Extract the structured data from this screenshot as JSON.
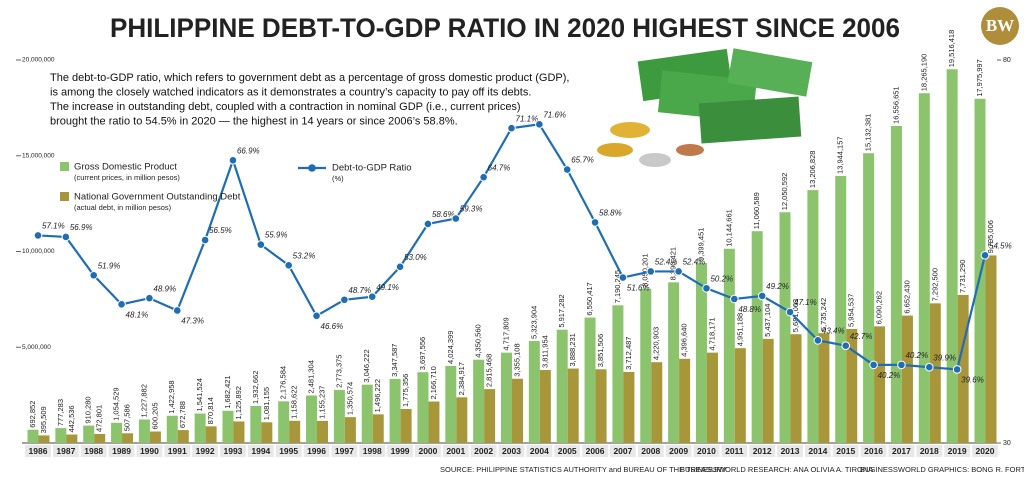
{
  "title": "PHILIPPINE DEBT-TO-GDP RATIO IN 2020 HIGHEST SINCE 2006",
  "logo": "BW",
  "description": [
    "The debt-to-GDP ratio, which refers to government debt as a percentage of gross domestic product (GDP),",
    "is among the closely watched indicators as it demonstrates a country’s capacity to pay off its debts.",
    "The increase in outstanding debt, coupled with a contraction in nominal GDP (i.e., current prices)",
    "brought the ratio to 54.5% in 2020 — the highest in 14 years or since 2006’s 58.8%."
  ],
  "footer": [
    "SOURCE: PHILIPPINE STATISTICS AUTHORITY and BUREAU OF THE TREASURY",
    "BUSINESSWORLD RESEARCH: ANA OLIVIA A. TIRONA",
    "BUSINESSWORLD GRAPHICS: BONG R. FORTIN"
  ],
  "chart_data": {
    "type": "bar",
    "title": "PHILIPPINE DEBT-TO-GDP RATIO IN 2020 HIGHEST SINCE 2006",
    "categories": [
      "1986",
      "1987",
      "1988",
      "1989",
      "1990",
      "1991",
      "1992",
      "1993",
      "1994",
      "1995",
      "1996",
      "1997",
      "1998",
      "1999",
      "2000",
      "2001",
      "2002",
      "2003",
      "2004",
      "2005",
      "2006",
      "2007",
      "2008",
      "2009",
      "2010",
      "2011",
      "2012",
      "2013",
      "2014",
      "2015",
      "2016",
      "2017",
      "2018",
      "2019",
      "2020"
    ],
    "ylim": [
      0,
      20000000
    ],
    "yticks": [
      {
        "value": 5000000,
        "label": "5,000,000"
      },
      {
        "value": 10000000,
        "label": "10,000,000"
      },
      {
        "value": 15000000,
        "label": "15,000,000"
      },
      {
        "value": 20000000,
        "label": "20,000,000"
      }
    ],
    "y2lim": [
      30,
      80
    ],
    "y2ticks": [
      30,
      80
    ],
    "series": [
      {
        "name": "Gross Domestic Product",
        "note": "(current prices, in million pesos)",
        "color": "#8cc46e",
        "values": [
          692852,
          777283,
          910280,
          1054529,
          1227882,
          1422958,
          1541524,
          1682421,
          1932662,
          2176584,
          2481304,
          2773375,
          3046222,
          3347587,
          3697556,
          4024399,
          4350560,
          4717809,
          5323904,
          5917282,
          6550417,
          7190245,
          8050201,
          8390421,
          9399451,
          10144661,
          11060589,
          12050592,
          13206828,
          13944157,
          15132381,
          16556651,
          18265190,
          19516418,
          17975997
        ],
        "value_labels": [
          "692,852",
          "777,283",
          "910,280",
          "1,054,529",
          "1,227,882",
          "1,422,958",
          "1,541,524",
          "1,682,421",
          "1,932,662",
          "2,176,584",
          "2,481,304",
          "2,773,375",
          "3,046,222",
          "3,347,587",
          "3,697,556",
          "4,024,399",
          "4,350,560",
          "4,717,809",
          "5,323,904",
          "5,917,282",
          "6,550,417",
          "7,190,245",
          "8,050,201",
          "8,390,421",
          "9,399,451",
          "10,144,661",
          "11,060,589",
          "12,050,592",
          "13,206,828",
          "13,944,157",
          "15,132,381",
          "16,556,651",
          "18,265,190",
          "19,516,418",
          "17,975,997"
        ]
      },
      {
        "name": "National Government Outstanding Debt",
        "note": "(actual debt, in million pesos)",
        "color": "#a8963a",
        "values": [
          395509,
          442536,
          472801,
          507586,
          600205,
          672788,
          870814,
          1125892,
          1081155,
          1158622,
          1155237,
          1350574,
          1496222,
          1775356,
          2166710,
          2384917,
          2815468,
          3355108,
          3811954,
          3888231,
          3851506,
          3712487,
          4220903,
          4396640,
          4718171,
          4951188,
          5437104,
          5681063,
          5735242,
          5954537,
          6090262,
          6652430,
          7292500,
          7731290,
          9795006
        ],
        "value_labels": [
          "395,509",
          "442,536",
          "472,801",
          "507,586",
          "600,205",
          "672,788",
          "870,814",
          "1,125,892",
          "1,081,155",
          "1,158,622",
          "1,155,237",
          "1,350,574",
          "1,496,222",
          "1,775,356",
          "2,166,710",
          "2,384,917",
          "2,815,468",
          "3,355,108",
          "3,811,954",
          "3,888,231",
          "3,851,506",
          "3,712,487",
          "4,220,903",
          "4,396,640",
          "4,718,171",
          "4,951,188",
          "5,437,104",
          "5,681,063",
          "5,735,242",
          "5,954,537",
          "6,090,262",
          "6,652,430",
          "7,292,500",
          "7,731,290",
          "9,795,006"
        ]
      },
      {
        "name": "Debt-to-GDP Ratio",
        "note": "(%)",
        "color": "#1f6db5",
        "type": "line",
        "axis": "y2",
        "values": [
          57.1,
          56.9,
          51.9,
          48.1,
          48.9,
          47.3,
          56.5,
          66.9,
          55.9,
          53.2,
          46.6,
          48.7,
          49.1,
          53.0,
          58.6,
          59.3,
          64.7,
          71.1,
          71.6,
          65.7,
          58.8,
          51.6,
          52.4,
          52.4,
          50.2,
          48.8,
          49.2,
          47.1,
          43.4,
          42.7,
          40.2,
          40.2,
          39.9,
          39.6,
          54.5
        ],
        "value_labels": [
          "57.1%",
          "56.9%",
          "51.9%",
          "48.1%",
          "48.9%",
          "47.3%",
          "56.5%",
          "66.9%",
          "55.9%",
          "53.2%",
          "46.6%",
          "48.7%",
          "49.1%",
          "53.0%",
          "58.6%",
          "59.3%",
          "64.7%",
          "71.1%",
          "71.6%",
          "65.7%",
          "58.8%",
          "51.6%",
          "52.4%",
          "52.4%",
          "50.2%",
          "48.8%",
          "49.2%",
          "47.1%",
          "43.4%",
          "42.7%",
          "40.2%",
          "40.2%",
          "39.9%",
          "39.6%",
          "54.5%"
        ]
      }
    ]
  }
}
